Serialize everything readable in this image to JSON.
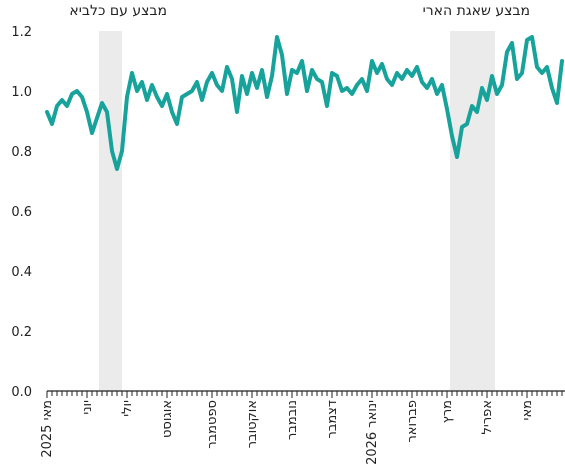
{
  "chart_data": {
    "type": "line",
    "annotations": [
      {
        "text": "מבצע עם כלביא"
      },
      {
        "text": "מבצע שאגת הארי"
      }
    ],
    "categories": [
      "מאי 2025",
      null,
      null,
      null,
      null,
      null,
      null,
      null,
      "יוני",
      null,
      null,
      null,
      null,
      null,
      null,
      null,
      "יולי",
      null,
      null,
      null,
      null,
      null,
      null,
      null,
      "אוגוסט",
      null,
      null,
      null,
      null,
      null,
      null,
      null,
      null,
      "ספטמבר",
      null,
      null,
      null,
      null,
      null,
      null,
      null,
      "אוקטובר",
      null,
      null,
      null,
      null,
      null,
      null,
      null,
      "נובמבר",
      null,
      null,
      null,
      null,
      null,
      null,
      null,
      "דצמבר",
      null,
      null,
      null,
      null,
      null,
      null,
      null,
      "ינואר 2026",
      null,
      null,
      null,
      null,
      null,
      null,
      null,
      "פברואר",
      null,
      null,
      null,
      null,
      null,
      null,
      "מרץ",
      null,
      null,
      null,
      null,
      null,
      null,
      null,
      "אפריל",
      null,
      null,
      null,
      null,
      null,
      null,
      null,
      "מאי",
      null,
      null,
      null,
      null,
      null,
      null,
      null
    ],
    "values": [
      0.93,
      0.89,
      0.95,
      0.97,
      0.95,
      0.99,
      1.0,
      0.98,
      0.93,
      0.86,
      0.91,
      0.96,
      0.93,
      0.8,
      0.74,
      0.8,
      0.98,
      1.06,
      1.0,
      1.03,
      0.97,
      1.02,
      0.98,
      0.95,
      0.99,
      0.93,
      0.89,
      0.98,
      0.99,
      1.0,
      1.03,
      0.97,
      1.03,
      1.06,
      1.02,
      1.0,
      1.08,
      1.04,
      0.93,
      1.05,
      0.99,
      1.06,
      1.01,
      1.07,
      0.98,
      1.05,
      1.18,
      1.12,
      0.99,
      1.07,
      1.06,
      1.1,
      1.0,
      1.07,
      1.04,
      1.03,
      0.95,
      1.06,
      1.05,
      1.0,
      1.01,
      0.99,
      1.02,
      1.04,
      1.0,
      1.1,
      1.06,
      1.09,
      1.04,
      1.02,
      1.06,
      1.04,
      1.07,
      1.05,
      1.08,
      1.03,
      1.01,
      1.04,
      0.99,
      1.02,
      0.94,
      0.85,
      0.78,
      0.88,
      0.89,
      0.95,
      0.93,
      1.01,
      0.97,
      1.05,
      0.99,
      1.02,
      1.13,
      1.16,
      1.04,
      1.06,
      1.17,
      1.18,
      1.08,
      1.06,
      1.08,
      1.01,
      0.96,
      1.1
    ],
    "color": "#17a39b",
    "ylim": [
      0,
      1.2
    ],
    "yticks": [
      {
        "value": 0,
        "label": "0.0"
      },
      0.2,
      0.4,
      0.6,
      0.8,
      {
        "value": 1,
        "label": "1.0"
      },
      1.2
    ],
    "grid": false
  }
}
